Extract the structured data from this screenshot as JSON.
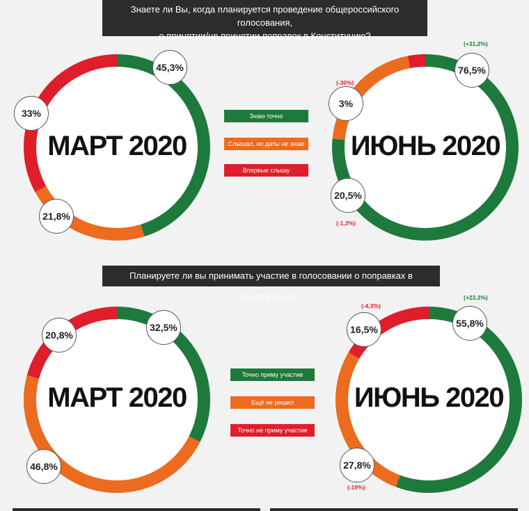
{
  "question1": {
    "line1": "Знаете ли Вы, когда планируется проведение  общероссийского голосования,",
    "line2": "о принятии/не принятии  поправок в Конституцию?"
  },
  "question2": "Планируете ли вы принимать участие в голосовании о поправках в Конституцию?",
  "colors": {
    "green": "#1e7a3c",
    "orange": "#ec6b1e",
    "red": "#e01d2b"
  },
  "legend1": [
    "Знаю точно",
    "Слышал, но даты не знаю",
    "Впервые слышу"
  ],
  "legend2": [
    "Точно приму участие",
    "Ещё не решил",
    "Точно не приму участие"
  ],
  "chart_data": [
    {
      "type": "pie",
      "title": "МАРТ 2020",
      "categories": [
        "Знаю точно",
        "Слышал, но даты не знаю",
        "Впервые слышу"
      ],
      "values": [
        45.3,
        21.8,
        33
      ],
      "labels": [
        "45,3%",
        "21,8%",
        "33%"
      ],
      "deltas": [
        "",
        "",
        ""
      ]
    },
    {
      "type": "pie",
      "title": "ИЮНЬ 2020",
      "categories": [
        "Знаю точно",
        "Слышал, но даты не знаю",
        "Впервые слышу"
      ],
      "values": [
        76.5,
        20.5,
        3
      ],
      "labels": [
        "76,5%",
        "20,5%",
        "3%"
      ],
      "deltas": [
        "(+31,2%)",
        "(-1,3%)",
        "(-30%)"
      ]
    },
    {
      "type": "pie",
      "title": "МАРТ 2020",
      "categories": [
        "Точно приму участие",
        "Ещё не решил",
        "Точно не приму участие"
      ],
      "values": [
        32.5,
        46.8,
        20.8
      ],
      "labels": [
        "32,5%",
        "46,8%",
        "20,8%"
      ],
      "deltas": [
        "",
        "",
        ""
      ]
    },
    {
      "type": "pie",
      "title": "ИЮНЬ 2020",
      "categories": [
        "Точно приму участие",
        "Ещё не решил",
        "Точно не приму участие"
      ],
      "values": [
        55.8,
        27.8,
        16.5
      ],
      "labels": [
        "55,8%",
        "27,8%",
        "16,5%"
      ],
      "deltas": [
        "(+23,3%)",
        "(-19%)",
        "(-4,3%)"
      ]
    }
  ]
}
